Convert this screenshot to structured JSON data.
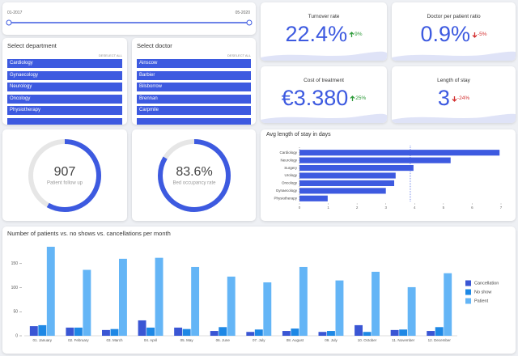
{
  "date_range": {
    "start": "01-2017",
    "end": "05-2020"
  },
  "department_filter": {
    "title": "Select department",
    "deselect": "DESELECT ALL",
    "items": [
      "Cardiology",
      "Gynaecology",
      "Neurology",
      "Oncology",
      "Physiotherapy"
    ]
  },
  "doctor_filter": {
    "title": "Select doctor",
    "deselect": "DESELECT ALL",
    "items": [
      "Ainscow",
      "Barbier",
      "Bilsborrow",
      "Brennan",
      "Carpmile"
    ]
  },
  "kpis": [
    {
      "title": "Turnover rate",
      "value": "22.4%",
      "change": "9%",
      "direction": "up"
    },
    {
      "title": "Doctor per patient ratio",
      "value": "0.9%",
      "change": "-5%",
      "direction": "down"
    },
    {
      "title": "Cost of treatment",
      "value": "€3.380",
      "change": "25%",
      "direction": "up"
    },
    {
      "title": "Length of stay",
      "value": "3",
      "change": "-24%",
      "direction": "down"
    }
  ],
  "gauges": [
    {
      "value": 907,
      "value_label": "907",
      "label": "Patient follow up",
      "max": 1560
    },
    {
      "value": 83.6,
      "value_label": "83.6%",
      "label": "Bed occupancy rate",
      "max": 100
    }
  ],
  "chart_data": [
    {
      "type": "bar",
      "orientation": "horizontal",
      "title": "Avg length of stay in days",
      "categories": [
        "Cardiology",
        "Neurology",
        "Surgery",
        "Urology",
        "Oncology",
        "Gynaecology",
        "Physiotherapy"
      ],
      "values": [
        6.95,
        5.25,
        3.96,
        3.34,
        3.29,
        3.0,
        0.98
      ],
      "color": "#3d5ae0",
      "reference_line": 3.85,
      "xlim": [
        0,
        7
      ],
      "xticks": [
        0,
        1,
        2,
        3,
        4,
        5,
        6,
        7
      ]
    },
    {
      "type": "grouped_bar",
      "title": "Number of patients vs. no shows vs. cancellations per month",
      "categories": [
        "01. January",
        "02. February",
        "03. March",
        "04. April",
        "05. May",
        "06. June",
        "07. July",
        "08. August",
        "09. July",
        "10. October",
        "11. November",
        "12. December"
      ],
      "series": [
        {
          "name": "Cancellation",
          "color": "#3a56d4",
          "values": [
            20,
            17,
            12,
            32,
            17,
            10,
            8,
            10,
            8,
            22,
            12,
            10
          ]
        },
        {
          "name": "No show",
          "color": "#1e88e5",
          "values": [
            22,
            17,
            14,
            17,
            14,
            18,
            13,
            15,
            10,
            8,
            13,
            18
          ]
        },
        {
          "name": "Patient",
          "color": "#64b5f6",
          "values": [
            185,
            137,
            160,
            162,
            143,
            123,
            111,
            143,
            115,
            133,
            101,
            130
          ]
        }
      ],
      "ylim": [
        0,
        190
      ],
      "yticks": [
        0,
        50,
        100,
        150
      ],
      "legend": "right"
    }
  ]
}
